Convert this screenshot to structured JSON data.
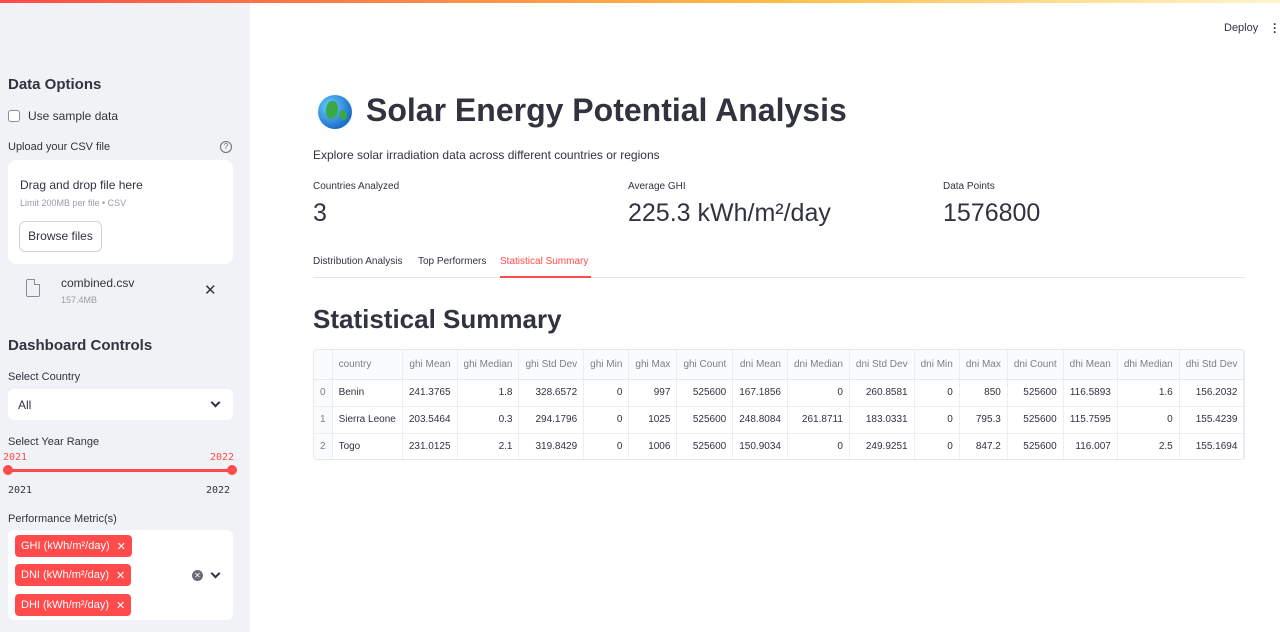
{
  "sidebar": {
    "data_options_heading": "Data Options",
    "use_sample_label": "Use sample data",
    "upload_label": "Upload your CSV file",
    "help_glyph": "?",
    "dropzone_title": "Drag and drop file here",
    "dropzone_subtitle": "Limit 200MB per file • CSV",
    "browse_label": "Browse files",
    "file": {
      "name": "combined.csv",
      "size": "157.4MB"
    },
    "dashboard_heading": "Dashboard Controls",
    "country_label": "Select Country",
    "country_value": "All",
    "year_label": "Select Year Range",
    "year_range": {
      "low": "2021",
      "high": "2022",
      "min": "2021",
      "max": "2022"
    },
    "metric_label": "Performance Metric(s)",
    "metrics": [
      "GHI (kWh/m²/day)",
      "DNI (kWh/m²/day)",
      "DHI (kWh/m²/day)"
    ]
  },
  "header": {
    "deploy_label": "Deploy"
  },
  "main": {
    "title": "Solar Energy Potential Analysis",
    "subtitle": "Explore solar irradiation data across different countries or regions",
    "metrics": [
      {
        "label": "Countries Analyzed",
        "value": "3"
      },
      {
        "label": "Average GHI",
        "value": "225.3 kWh/m²/day"
      },
      {
        "label": "Data Points",
        "value": "1576800"
      }
    ],
    "tabs": [
      "Distribution Analysis",
      "Top Performers",
      "Statistical Summary"
    ],
    "active_tab": "Statistical Summary",
    "section_title": "Statistical Summary",
    "table": {
      "columns": [
        "",
        "country",
        "ghi Mean",
        "ghi Median",
        "ghi Std Dev",
        "ghi Min",
        "ghi Max",
        "ghi Count",
        "dni Mean",
        "dni Median",
        "dni Std Dev",
        "dni Min",
        "dni Max",
        "dni Count",
        "dhi Mean",
        "dhi Median",
        "dhi Std Dev"
      ],
      "rows": [
        [
          "0",
          "Benin",
          "241.3765",
          "1.8",
          "328.6572",
          "0",
          "997",
          "525600",
          "167.1856",
          "0",
          "260.8581",
          "0",
          "850",
          "525600",
          "116.5893",
          "1.6",
          "156.2032"
        ],
        [
          "1",
          "Sierra Leone",
          "203.5464",
          "0.3",
          "294.1796",
          "0",
          "1025",
          "525600",
          "248.8084",
          "261.8711",
          "183.0331",
          "0",
          "795.3",
          "525600",
          "115.7595",
          "0",
          "155.4239"
        ],
        [
          "2",
          "Togo",
          "231.0125",
          "2.1",
          "319.8429",
          "0",
          "1006",
          "525600",
          "150.9034",
          "0",
          "249.9251",
          "0",
          "847.2",
          "525600",
          "116.007",
          "2.5",
          "155.1694"
        ]
      ]
    }
  },
  "colors": {
    "accent": "#ff4b4b",
    "sidebar_bg": "#f0f2f6",
    "text": "#31333f"
  },
  "icons": [
    "globe-icon",
    "file-icon",
    "close-icon",
    "chevron-down-icon",
    "help-icon",
    "more-vertical-icon",
    "clear-icon"
  ]
}
